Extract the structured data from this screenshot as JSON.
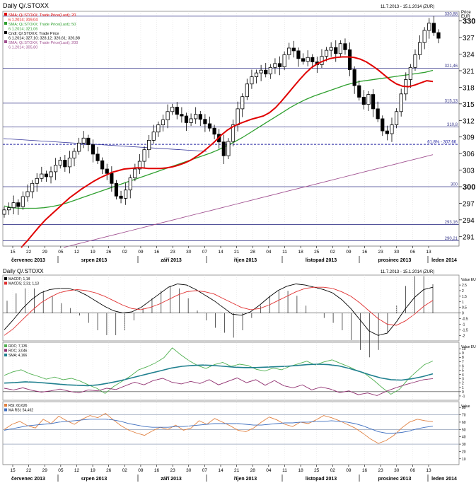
{
  "header": {
    "title": "Daily Q/.STOXX",
    "range": "11.7.2013 - 15.1.2014 (ZUR)",
    "price_label": "Price",
    "currency": "EUR"
  },
  "lower_header": {
    "title": "Daily Q/.STOXX",
    "range": "11.7.2013 - 15.1.2014 (ZUR)"
  },
  "months": [
    "červenec 2013",
    "srpen 2013",
    "září 2013",
    "říjen 2013",
    "listopad 2013",
    "prosinec 2013",
    "leden 2014"
  ],
  "day_ticks": [
    "15",
    "22",
    "29",
    "05",
    "12",
    "19",
    "26",
    "02",
    "09",
    "16",
    "23",
    "30",
    "07",
    "14",
    "21",
    "28",
    "04",
    "11",
    "18",
    "25",
    "02",
    "09",
    "16",
    "23",
    "30",
    "06",
    "13"
  ],
  "chart_data": [
    {
      "type": "candlestick",
      "title": "Daily Q/.STOXX",
      "ylabel": "Price EUR",
      "ylim": [
        289.5,
        331.5
      ],
      "yticks": [
        291,
        294,
        297,
        300,
        303,
        306,
        309,
        312,
        315,
        318,
        321,
        324,
        327,
        330
      ],
      "yticks_highlight": [
        300,
        330
      ],
      "hlines": [
        {
          "value": 330.88,
          "label": "330,88"
        },
        {
          "value": 321.46,
          "label": "321,46"
        },
        {
          "value": 315.13,
          "label": "315,13"
        },
        {
          "value": 310.8,
          "label": "310,8"
        },
        {
          "value": 300,
          "label": "300"
        },
        {
          "value": 293.16,
          "label": "293,16"
        },
        {
          "value": 290.21,
          "label": "290,21"
        }
      ],
      "fib_line": {
        "label": "61.8% - 307,66",
        "value": 307.66
      },
      "legend": [
        {
          "name": "SMA; Q/.STOXX; Trade Price(Last); 20",
          "value": "6.1.2014; 319,04",
          "color": "#e00000"
        },
        {
          "name": "SMA; Q/.STOXX; Trade Price(Last); 50",
          "value": "6.1.2014; 321,06",
          "color": "#30a030"
        },
        {
          "name": "Cndl; Q/.STOXX; Trade Price",
          "value": "6.1.2014; 327,10; 328,12; 326,61; 326,88",
          "color": "#000000"
        },
        {
          "name": "SMA; Q/.STOXX; Trade Price(Last); 200",
          "value": "6.1.2014; 305,80",
          "color": "#a05090"
        }
      ],
      "close": [
        295.8,
        296.2,
        297.1,
        296.4,
        298.2,
        299.1,
        300.6,
        301.5,
        302.3,
        301.8,
        302.7,
        303.9,
        304.8,
        303.6,
        305.2,
        306.4,
        307.9,
        308.8,
        307.6,
        305.9,
        304.7,
        303.2,
        302.4,
        300.6,
        298.3,
        297.9,
        299.4,
        301.6,
        303.2,
        304.6,
        306.7,
        308.4,
        309.9,
        311.2,
        312.1,
        313.6,
        314.4,
        313.1,
        312.8,
        311.6,
        312.3,
        313.1,
        312.2,
        311.4,
        310.6,
        309.5,
        308.1,
        305.6,
        308.2,
        311.2,
        314.1,
        316.3,
        318.6,
        319.9,
        320.6,
        321.1,
        320.4,
        321.6,
        322.3,
        321.7,
        323.9,
        325.1,
        324.6,
        323.2,
        322.7,
        323.4,
        322.6,
        322.1,
        323.6,
        324.7,
        325.2,
        324.1,
        325.9,
        324.8,
        321.2,
        318.3,
        316.2,
        314.9,
        316.7,
        314.1,
        312.3,
        310.1,
        309.6,
        311.2,
        313.6,
        316.8,
        319.4,
        321.6,
        323.9,
        326.1,
        328.3,
        329.6,
        327.9,
        326.88
      ],
      "sma20": [
        289,
        290.2,
        291.5,
        292.8,
        294,
        295,
        296,
        297,
        298,
        298.8,
        299.6,
        300.3,
        301,
        301.6,
        302.1,
        302.6,
        302.9,
        303.2,
        303.3,
        303.4,
        303.4,
        303.3,
        303.3,
        303.3,
        303.4,
        303.6,
        303.9,
        304.3,
        304.8,
        305.5,
        306.3,
        307.2,
        308.2,
        309.3,
        310.2,
        310.9,
        311.4,
        311.8,
        312.2,
        312.5,
        312.8,
        313.4,
        314.3,
        315.5,
        316.8,
        318.1,
        319.4,
        320.6,
        321.6,
        322.3,
        322.8,
        323.2,
        323.4,
        323.5,
        323.5,
        323.4,
        323.1,
        322.6,
        321.9,
        321.1,
        320.2,
        319.3,
        318.6,
        318.2,
        318.1,
        318.4,
        318.8,
        319.2,
        319.04
      ],
      "sma50": [
        296.5,
        296.2,
        296.1,
        296.1,
        296.1,
        296.2,
        296.4,
        296.7,
        297.1,
        297.6,
        298.1,
        298.6,
        299.1,
        299.6,
        300.1,
        300.6,
        301.1,
        301.6,
        302.1,
        302.6,
        303.1,
        303.6,
        304.1,
        304.6,
        305.1,
        305.6,
        306.1,
        306.7,
        307.4,
        308.1,
        308.9,
        309.8,
        310.7,
        311.6,
        312.5,
        313.4,
        314.3,
        315.1,
        315.8,
        316.4,
        316.9,
        317.4,
        317.9,
        318.4,
        318.8,
        319.1,
        319.3,
        319.5,
        319.7,
        319.9,
        320.1,
        320.3,
        320.5,
        320.7,
        321.06
      ],
      "sma200": [
        289,
        289.6,
        290.2,
        290.8,
        291.4,
        292,
        292.6,
        293.2,
        293.8,
        294.4,
        295,
        295.6,
        296.2,
        296.8,
        297.4,
        298,
        298.6,
        299.2,
        299.8,
        300.4,
        301,
        301.6,
        302.2,
        302.8,
        303.4,
        304,
        304.6,
        305.2,
        305.8
      ]
    },
    {
      "type": "line",
      "title": "MACD",
      "ylabel": "Value EUR",
      "ylim": [
        -2.3,
        3.2
      ],
      "yticks": [
        -2,
        -1.5,
        -1,
        -0.5,
        0,
        0.5,
        1,
        1.5,
        2,
        2.5
      ],
      "legend": [
        {
          "name": "MACDF",
          "value": "1,18",
          "color": "#000000"
        },
        {
          "name": "MACDS",
          "value": "2,31; 1,13",
          "color": "#e03030"
        }
      ],
      "macd": [
        -1.5,
        -0.6,
        0.4,
        1.2,
        1.8,
        2.1,
        2.2,
        2.2,
        2.0,
        1.6,
        1.1,
        0.6,
        0.2,
        0.0,
        0.1,
        0.5,
        1.1,
        1.7,
        2.3,
        2.6,
        2.5,
        2.1,
        1.6,
        1.1,
        0.5,
        -0.1,
        -0.2,
        0.1,
        0.7,
        1.4,
        2.0,
        2.4,
        2.6,
        2.5,
        2.3,
        2.1,
        1.8,
        1.2,
        0.4,
        -0.6,
        -1.6,
        -2.0,
        -1.8,
        -0.8,
        0.4,
        1.4,
        2.1,
        2.3
      ],
      "signal": [
        -2.0,
        -1.4,
        -0.6,
        0.2,
        0.9,
        1.4,
        1.8,
        2.0,
        2.1,
        2.0,
        1.8,
        1.5,
        1.1,
        0.7,
        0.4,
        0.3,
        0.5,
        0.8,
        1.2,
        1.6,
        1.9,
        2.0,
        1.9,
        1.7,
        1.3,
        0.9,
        0.5,
        0.3,
        0.4,
        0.7,
        1.1,
        1.5,
        1.9,
        2.2,
        2.3,
        2.3,
        2.2,
        1.9,
        1.5,
        0.9,
        0.2,
        -0.5,
        -1.0,
        -1.1,
        -0.7,
        -0.1,
        0.6,
        1.13
      ]
    },
    {
      "type": "line",
      "title": "ROC",
      "ylabel": "Value EUR",
      "ylim": [
        -1.5,
        11
      ],
      "yticks": [
        -1,
        0,
        1,
        2,
        3,
        4,
        5,
        6,
        7,
        8,
        9,
        10
      ],
      "legend": [
        {
          "name": "ROC",
          "value": "7,135",
          "color": "#50b050"
        },
        {
          "name": "ROC",
          "value": "3,046",
          "color": "#903070"
        },
        {
          "name": "SMA",
          "value": "4,166",
          "color": "#20808f"
        }
      ],
      "roc1": [
        3.8,
        4.6,
        5.1,
        4.2,
        3.6,
        2.9,
        3.4,
        2.8,
        3.1,
        2.5,
        1.6,
        0.8,
        -0.4,
        1.2,
        2.4,
        3.6,
        5.1,
        5.8,
        6.7,
        7.9,
        10.2,
        8.6,
        7.2,
        6.1,
        5.4,
        6.3,
        6.8,
        5.9,
        6.4,
        6.1,
        5.2,
        4.8,
        5.5,
        5.1,
        5.9,
        6.5,
        7.1,
        6.2,
        6.9,
        7.4,
        6.6,
        5.8,
        4.9,
        4.1,
        2.6,
        0.9,
        -0.6,
        0.5,
        2.8,
        4.6,
        6.3,
        7.135
      ],
      "roc2": [
        0.8,
        0.4,
        0.9,
        0.3,
        -0.1,
        0.2,
        0.6,
        0.1,
        -0.3,
        0.4,
        0.2,
        0.8,
        0.5,
        1.4,
        2.2,
        1.6,
        2.6,
        3.1,
        2.2,
        1.8,
        2.4,
        1.9,
        2.8,
        1.6,
        2.4,
        3.2,
        2.1,
        2.8,
        1.5,
        2.6,
        1.4,
        0.9,
        1.6,
        0.4,
        1.1,
        0.6,
        -0.2,
        0.2,
        -0.7,
        -0.3,
        -0.9,
        0.1,
        0.9,
        1.6,
        2.2,
        2.8,
        3.046
      ],
      "sma": [
        2.0,
        2.1,
        2.3,
        2.2,
        2.0,
        1.8,
        1.6,
        1.5,
        1.4,
        1.6,
        2.0,
        2.5,
        3.1,
        3.7,
        4.3,
        4.9,
        5.5,
        5.9,
        6.1,
        6.2,
        6.1,
        5.9,
        5.7,
        5.6,
        5.6,
        5.7,
        5.8,
        5.9,
        6.1,
        6.3,
        6.4,
        6.3,
        6.0,
        5.4,
        4.7,
        3.9,
        3.2,
        2.8,
        2.7,
        3.0,
        3.5,
        4.166
      ]
    },
    {
      "type": "line",
      "title": "RSI",
      "ylabel": "Value",
      "ylim": [
        5,
        85
      ],
      "yticks": [
        10,
        20,
        30,
        40,
        50,
        60,
        70,
        80
      ],
      "hlines": [
        70,
        50,
        30
      ],
      "legend": [
        {
          "name": "RSI",
          "value": "60,626",
          "color": "#e08040"
        },
        {
          "name": "MA RSI",
          "value": "54,462",
          "color": "#4070c0"
        }
      ],
      "rsi": [
        50,
        57,
        61,
        55,
        52,
        64,
        58,
        68,
        62,
        57,
        64,
        69,
        66,
        72,
        63,
        55,
        49,
        45,
        42,
        48,
        53,
        50,
        56,
        49,
        52,
        62,
        57,
        65,
        60,
        55,
        49,
        47,
        52,
        60,
        67,
        63,
        57,
        54,
        60,
        58,
        63,
        69,
        66,
        62,
        57,
        52,
        45,
        37,
        31,
        35,
        42,
        52,
        60,
        64,
        62,
        60.6
      ],
      "marsi": [
        49,
        51,
        53,
        55,
        56,
        57,
        58,
        60,
        61,
        62,
        63,
        64,
        64,
        64,
        63,
        61,
        58,
        56,
        54,
        53,
        53,
        53,
        54,
        54,
        55,
        56,
        57,
        58,
        58,
        58,
        58,
        57,
        56,
        56,
        57,
        58,
        59,
        59,
        60,
        60,
        61,
        61,
        62,
        61,
        60,
        58,
        55,
        51,
        47,
        45,
        45,
        46,
        48,
        51,
        53,
        54.46
      ]
    }
  ]
}
